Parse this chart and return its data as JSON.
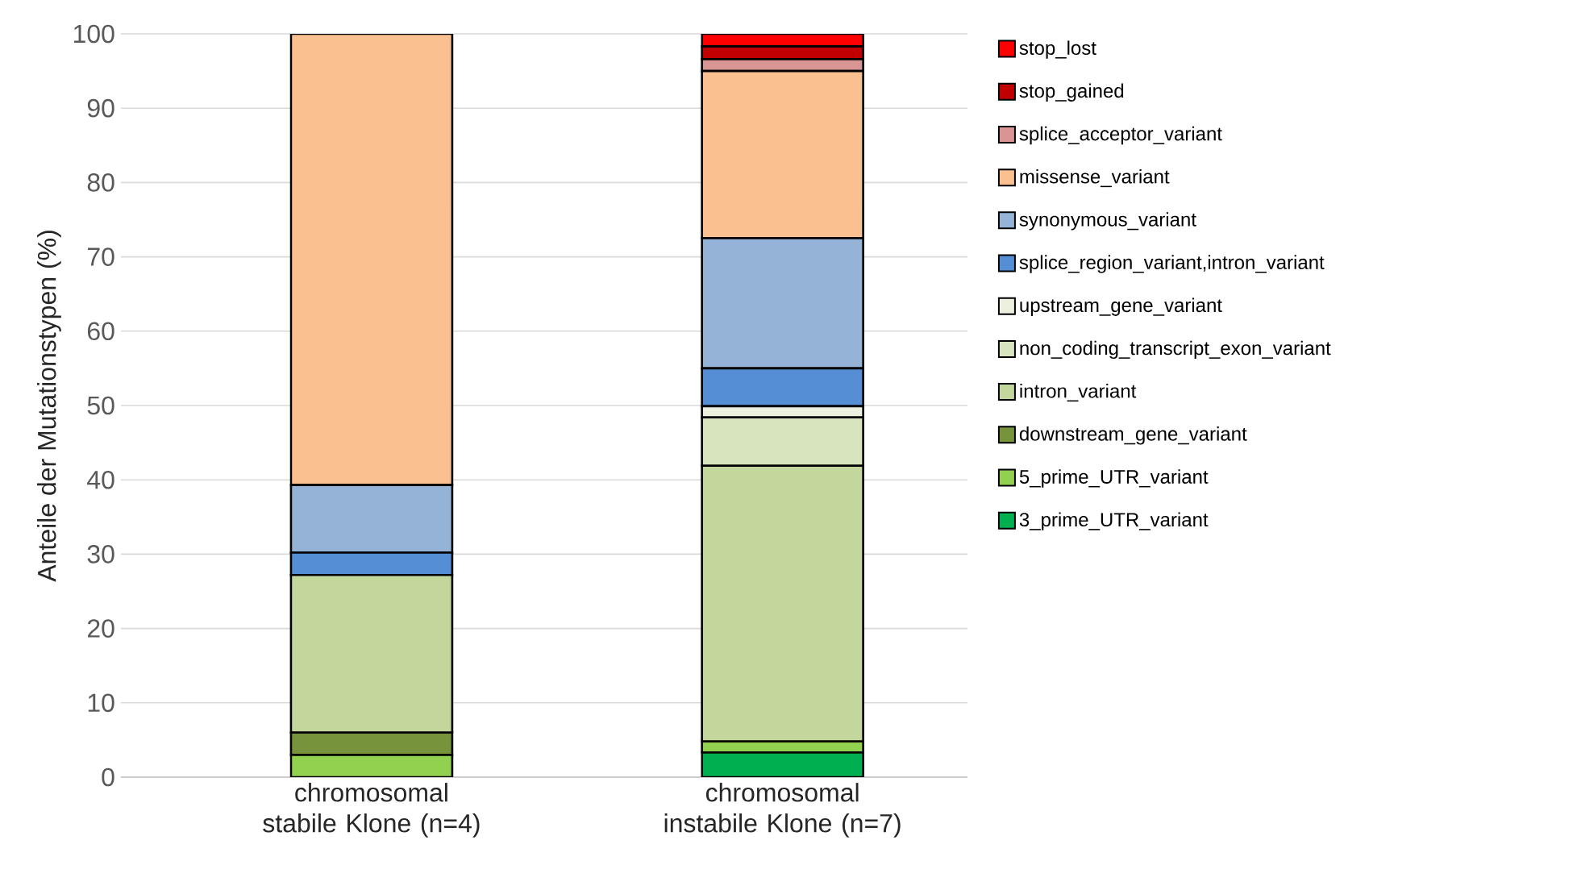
{
  "chart_data": {
    "type": "bar",
    "stacked": true,
    "ylabel": "Anteile der Mutationstypen (%)",
    "categories": [
      "chromosomal stabile Klone (n=4)",
      "chromosomal instabile Klone (n=7)"
    ],
    "ylim": [
      0,
      100
    ],
    "yticks": [
      0,
      10,
      20,
      30,
      40,
      50,
      60,
      70,
      80,
      90,
      100
    ],
    "grid": "y",
    "legend": "right",
    "series": [
      {
        "name": "3_prime_UTR_variant",
        "color": "#00b050",
        "values": [
          0,
          3.3
        ]
      },
      {
        "name": "5_prime_UTR_variant",
        "color": "#92d050",
        "values": [
          3.0,
          1.5
        ]
      },
      {
        "name": "downstream_gene_variant",
        "color": "#77933c",
        "values": [
          3.0,
          0
        ]
      },
      {
        "name": "intron_variant",
        "color": "#c3d69b",
        "values": [
          21.2,
          37.1
        ]
      },
      {
        "name": "non_coding_transcript_exon_variant",
        "color": "#d7e4bd",
        "values": [
          0,
          6.5
        ]
      },
      {
        "name": "upstream_gene_variant",
        "color": "#ebf1de",
        "values": [
          0,
          1.5
        ]
      },
      {
        "name": "splice_region_variant,intron_variant",
        "color": "#558ed5",
        "values": [
          3.0,
          5.1
        ]
      },
      {
        "name": "synonymous_variant",
        "color": "#95b3d7",
        "values": [
          9.1,
          17.5
        ]
      },
      {
        "name": "missense_variant",
        "color": "#fac090",
        "values": [
          60.7,
          22.5
        ]
      },
      {
        "name": "splice_acceptor_variant",
        "color": "#d99594",
        "values": [
          0,
          1.6
        ]
      },
      {
        "name": "stop_gained",
        "color": "#c00000",
        "values": [
          0,
          1.7
        ]
      },
      {
        "name": "stop_lost",
        "color": "#ff0000",
        "values": [
          0,
          1.7
        ]
      }
    ]
  }
}
